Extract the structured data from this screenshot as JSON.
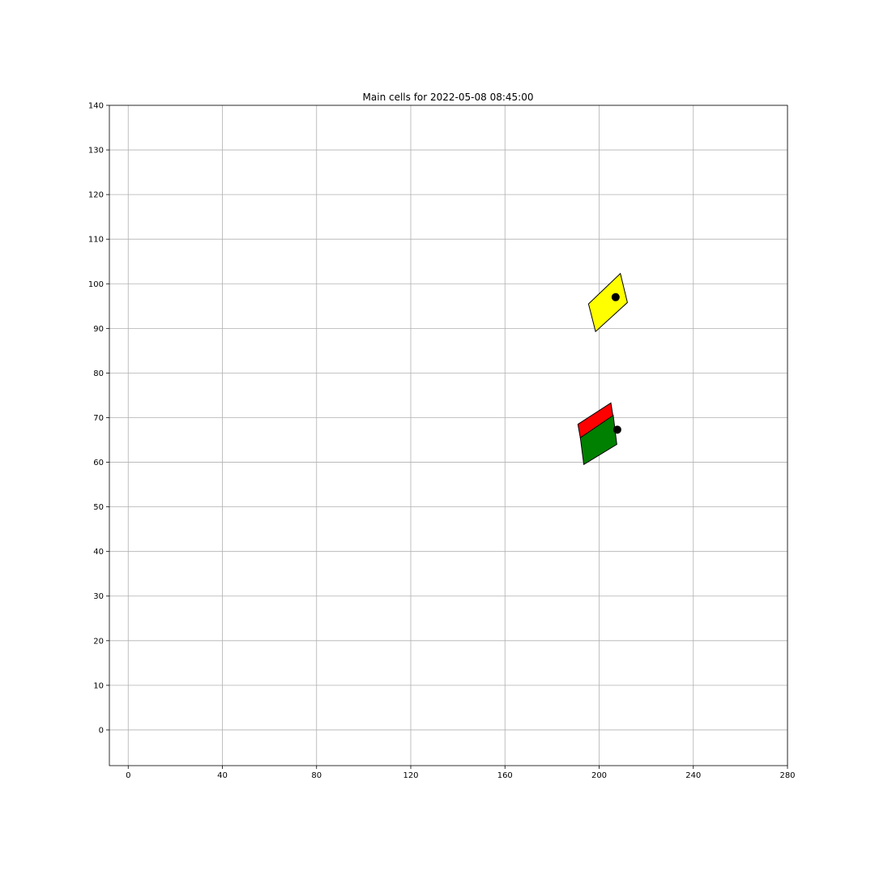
{
  "chart_data": {
    "type": "scatter",
    "title": "Main cells for 2022-05-08  08:45:00",
    "xlabel": "",
    "ylabel": "",
    "xlim": [
      -8,
      280
    ],
    "ylim": [
      -8,
      140
    ],
    "x_ticks": [
      0,
      40,
      80,
      120,
      160,
      200,
      240,
      280
    ],
    "y_ticks": [
      0,
      10,
      20,
      30,
      40,
      50,
      60,
      70,
      80,
      90,
      100,
      110,
      120,
      130,
      140
    ],
    "grid": true,
    "legend": "none",
    "cells": [
      {
        "color": "#ffff00",
        "polygon": [
          [
            195.5,
            95.5
          ],
          [
            209.0,
            102.3
          ],
          [
            212.0,
            95.8
          ],
          [
            198.5,
            89.3
          ]
        ]
      },
      {
        "color": "#ff0000",
        "polygon": [
          [
            191.0,
            68.5
          ],
          [
            205.0,
            73.3
          ],
          [
            206.0,
            70.0
          ],
          [
            192.0,
            65.5
          ]
        ]
      },
      {
        "color": "#008000",
        "polygon": [
          [
            192.0,
            65.5
          ],
          [
            206.0,
            70.5
          ],
          [
            207.5,
            64.0
          ],
          [
            193.5,
            59.5
          ]
        ]
      }
    ],
    "points": [
      {
        "x": 207.0,
        "y": 97.0
      },
      {
        "x": 207.7,
        "y": 67.3
      }
    ]
  }
}
